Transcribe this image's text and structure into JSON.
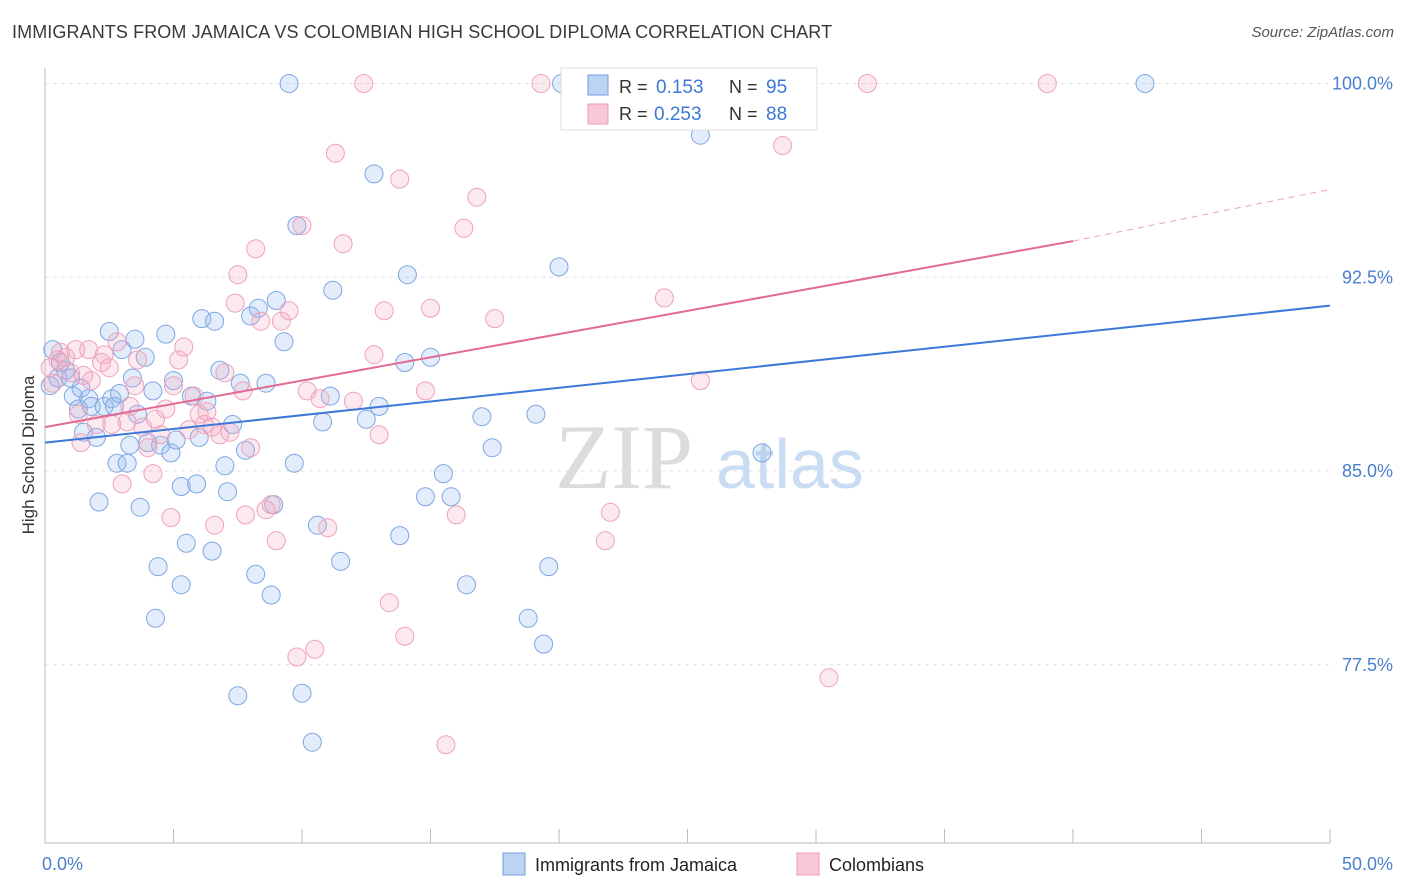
{
  "header": {
    "title": "IMMIGRANTS FROM JAMAICA VS COLOMBIAN HIGH SCHOOL DIPLOMA CORRELATION CHART",
    "source": "Source: ZipAtlas.com"
  },
  "watermark": {
    "zip": "ZIP",
    "atlas": "atlas"
  },
  "legend_box": {
    "rows": [
      {
        "r_label": "R =",
        "r_value": "0.153",
        "n_label": "N =",
        "n_value": "95",
        "color": "#6f9de0"
      },
      {
        "r_label": "R =",
        "r_value": "0.253",
        "n_label": "N =",
        "n_value": "88",
        "color": "#f09ab5"
      }
    ]
  },
  "chart_data": {
    "type": "scatter",
    "title": "IMMIGRANTS FROM JAMAICA VS COLOMBIAN HIGH SCHOOL DIPLOMA CORRELATION CHART",
    "xlabel": "",
    "ylabel": "High School Diploma",
    "x_tick_labels": [
      "0.0%",
      "50.0%"
    ],
    "y_tick_labels": [
      "100.0%",
      "92.5%",
      "85.0%",
      "77.5%"
    ],
    "y_ticks": [
      100.0,
      92.5,
      85.0,
      77.5
    ],
    "xlim": [
      0,
      50
    ],
    "ylim": [
      70.6,
      100.6
    ],
    "grid": true,
    "legend_position": "bottom",
    "series": [
      {
        "name": "Immigrants from Jamaica",
        "color": "#6f9de0",
        "trend": {
          "x": [
            0,
            50
          ],
          "y": [
            86.1,
            91.4
          ]
        },
        "points": [
          [
            0.3,
            89.7
          ],
          [
            0.5,
            88.6
          ],
          [
            0.6,
            89.2
          ],
          [
            0.8,
            88.9
          ],
          [
            1.0,
            88.6
          ],
          [
            1.1,
            87.9
          ],
          [
            1.3,
            87.4
          ],
          [
            1.4,
            88.2
          ],
          [
            1.5,
            86.5
          ],
          [
            1.7,
            87.8
          ],
          [
            1.8,
            87.5
          ],
          [
            2.0,
            86.3
          ],
          [
            2.1,
            83.8
          ],
          [
            2.3,
            87.5
          ],
          [
            2.5,
            90.4
          ],
          [
            2.6,
            87.8
          ],
          [
            2.7,
            87.5
          ],
          [
            2.8,
            85.3
          ],
          [
            2.9,
            88.0
          ],
          [
            3.0,
            89.7
          ],
          [
            3.2,
            85.3
          ],
          [
            3.3,
            86.0
          ],
          [
            3.4,
            88.6
          ],
          [
            3.5,
            90.1
          ],
          [
            3.6,
            87.2
          ],
          [
            3.7,
            83.6
          ],
          [
            3.9,
            89.4
          ],
          [
            4.0,
            86.1
          ],
          [
            4.2,
            88.1
          ],
          [
            4.3,
            79.3
          ],
          [
            4.4,
            81.3
          ],
          [
            4.5,
            86.0
          ],
          [
            4.7,
            90.3
          ],
          [
            4.9,
            85.7
          ],
          [
            5.0,
            88.5
          ],
          [
            5.1,
            86.2
          ],
          [
            5.3,
            84.4
          ],
          [
            5.3,
            80.6
          ],
          [
            5.5,
            82.2
          ],
          [
            5.7,
            87.9
          ],
          [
            5.9,
            84.5
          ],
          [
            6.0,
            86.3
          ],
          [
            6.1,
            90.9
          ],
          [
            6.3,
            87.7
          ],
          [
            6.5,
            81.9
          ],
          [
            6.6,
            90.8
          ],
          [
            6.8,
            88.9
          ],
          [
            7.0,
            85.2
          ],
          [
            7.1,
            84.2
          ],
          [
            7.3,
            86.8
          ],
          [
            7.5,
            76.3
          ],
          [
            7.6,
            88.4
          ],
          [
            7.8,
            85.8
          ],
          [
            8.0,
            91.0
          ],
          [
            8.2,
            81.0
          ],
          [
            8.3,
            91.3
          ],
          [
            8.6,
            88.4
          ],
          [
            8.8,
            80.2
          ],
          [
            8.9,
            83.7
          ],
          [
            9.0,
            91.6
          ],
          [
            9.3,
            90.0
          ],
          [
            9.5,
            100.0
          ],
          [
            9.7,
            85.3
          ],
          [
            9.8,
            94.5
          ],
          [
            10.0,
            76.4
          ],
          [
            10.4,
            74.5
          ],
          [
            10.6,
            82.9
          ],
          [
            10.8,
            86.9
          ],
          [
            11.1,
            87.9
          ],
          [
            11.2,
            92.0
          ],
          [
            11.5,
            81.5
          ],
          [
            12.5,
            87.0
          ],
          [
            12.8,
            96.5
          ],
          [
            13.0,
            87.5
          ],
          [
            13.8,
            82.5
          ],
          [
            14.0,
            89.2
          ],
          [
            14.1,
            92.6
          ],
          [
            14.8,
            84.0
          ],
          [
            15.0,
            89.4
          ],
          [
            15.5,
            84.9
          ],
          [
            15.8,
            84.0
          ],
          [
            16.4,
            80.6
          ],
          [
            17.0,
            87.1
          ],
          [
            17.4,
            85.9
          ],
          [
            18.8,
            79.3
          ],
          [
            19.1,
            87.2
          ],
          [
            19.4,
            78.3
          ],
          [
            19.6,
            81.3
          ],
          [
            20.0,
            92.9
          ],
          [
            20.1,
            100.0
          ],
          [
            24.5,
            100.0
          ],
          [
            25.5,
            98.0
          ],
          [
            27.9,
            85.7
          ],
          [
            42.8,
            100.0
          ],
          [
            0.2,
            88.3
          ]
        ]
      },
      {
        "name": "Colombians",
        "color": "#f09ab5",
        "trend": {
          "x": [
            0,
            40
          ],
          "y": [
            86.7,
            93.9
          ]
        },
        "dashed_extension": {
          "x": [
            40,
            50
          ],
          "y": [
            93.9,
            95.9
          ]
        },
        "points": [
          [
            0.3,
            88.4
          ],
          [
            0.5,
            89.3
          ],
          [
            0.6,
            89.6
          ],
          [
            0.8,
            89.4
          ],
          [
            1.0,
            88.8
          ],
          [
            1.2,
            89.7
          ],
          [
            1.3,
            87.2
          ],
          [
            1.4,
            86.1
          ],
          [
            1.5,
            88.7
          ],
          [
            1.7,
            89.7
          ],
          [
            1.8,
            88.5
          ],
          [
            2.0,
            86.8
          ],
          [
            2.2,
            89.2
          ],
          [
            2.3,
            89.5
          ],
          [
            2.5,
            89.0
          ],
          [
            2.6,
            86.8
          ],
          [
            2.8,
            90.0
          ],
          [
            3.0,
            84.5
          ],
          [
            3.2,
            86.9
          ],
          [
            3.3,
            87.5
          ],
          [
            3.5,
            88.3
          ],
          [
            3.6,
            89.3
          ],
          [
            3.8,
            86.7
          ],
          [
            4.0,
            85.9
          ],
          [
            4.2,
            84.9
          ],
          [
            4.3,
            87.0
          ],
          [
            4.5,
            86.4
          ],
          [
            4.7,
            87.4
          ],
          [
            4.9,
            83.2
          ],
          [
            5.0,
            88.3
          ],
          [
            5.2,
            89.3
          ],
          [
            5.4,
            89.8
          ],
          [
            5.6,
            86.6
          ],
          [
            5.8,
            87.9
          ],
          [
            6.0,
            87.2
          ],
          [
            6.2,
            86.8
          ],
          [
            6.3,
            87.3
          ],
          [
            6.5,
            86.7
          ],
          [
            6.6,
            82.9
          ],
          [
            6.8,
            86.4
          ],
          [
            7.0,
            88.8
          ],
          [
            7.2,
            86.5
          ],
          [
            7.4,
            91.5
          ],
          [
            7.5,
            92.6
          ],
          [
            7.7,
            88.1
          ],
          [
            7.8,
            83.3
          ],
          [
            8.0,
            85.9
          ],
          [
            8.2,
            93.6
          ],
          [
            8.4,
            90.8
          ],
          [
            8.6,
            83.5
          ],
          [
            8.8,
            83.7
          ],
          [
            9.0,
            82.3
          ],
          [
            9.2,
            90.8
          ],
          [
            9.5,
            91.2
          ],
          [
            9.8,
            77.8
          ],
          [
            10.0,
            94.5
          ],
          [
            10.2,
            88.1
          ],
          [
            10.5,
            78.1
          ],
          [
            10.7,
            87.8
          ],
          [
            11.0,
            82.8
          ],
          [
            11.3,
            97.3
          ],
          [
            11.6,
            93.8
          ],
          [
            12.0,
            87.7
          ],
          [
            12.4,
            100.0
          ],
          [
            12.8,
            89.5
          ],
          [
            13.0,
            86.4
          ],
          [
            13.2,
            91.2
          ],
          [
            13.4,
            79.9
          ],
          [
            13.8,
            96.3
          ],
          [
            14.0,
            78.6
          ],
          [
            14.8,
            88.1
          ],
          [
            15.0,
            91.3
          ],
          [
            15.6,
            74.4
          ],
          [
            16.0,
            83.3
          ],
          [
            16.3,
            94.4
          ],
          [
            16.8,
            95.6
          ],
          [
            17.5,
            90.9
          ],
          [
            19.3,
            100.0
          ],
          [
            21.8,
            82.3
          ],
          [
            22.0,
            83.4
          ],
          [
            24.1,
            91.7
          ],
          [
            25.5,
            88.5
          ],
          [
            26.0,
            100.0
          ],
          [
            28.7,
            97.6
          ],
          [
            30.5,
            77.0
          ],
          [
            32.0,
            100.0
          ],
          [
            39.0,
            100.0
          ],
          [
            0.2,
            89.0
          ]
        ]
      }
    ]
  }
}
